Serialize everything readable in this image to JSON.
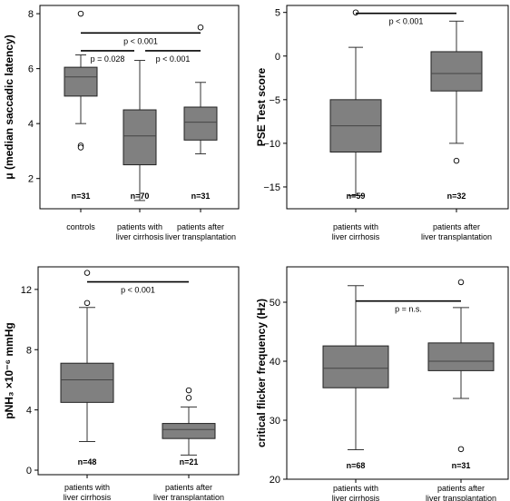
{
  "chart_data": [
    {
      "type": "box",
      "ylabel": "μ (median saccadic latency)",
      "ylim": [
        0.9,
        8.3
      ],
      "yticks": [
        2,
        4,
        6,
        8
      ],
      "categories": [
        "controls",
        "patients with\nliver cirrhosis",
        "patients after\nliver transplantation"
      ],
      "boxes": [
        {
          "min": 4.0,
          "q1": 5.0,
          "median": 5.7,
          "q3": 6.05,
          "max": 6.5,
          "outliers": [
            8.0,
            3.2,
            3.13
          ],
          "n": "n=31"
        },
        {
          "min": 1.2,
          "q1": 2.5,
          "median": 3.55,
          "q3": 4.5,
          "max": 6.3,
          "outliers": [],
          "n": "n=70"
        },
        {
          "min": 2.9,
          "q1": 3.4,
          "median": 4.05,
          "q3": 4.6,
          "max": 5.5,
          "outliers": [
            7.5
          ],
          "n": "n=31"
        }
      ],
      "annotations": [
        {
          "from": 0,
          "to": 2,
          "y": 7.3,
          "text": "p < 0.001"
        },
        {
          "from": 0,
          "to": 1,
          "y": 6.65,
          "text": "p = 0.028"
        },
        {
          "from": 1,
          "to": 2,
          "y": 6.65,
          "text": "p < 0.001"
        }
      ]
    },
    {
      "type": "box",
      "ylabel": "PSE Test score",
      "ylim": [
        -17.5,
        5.8
      ],
      "yticks": [
        5,
        0,
        -5,
        -10,
        -15
      ],
      "categories": [
        "patients with\nliver cirrhosis",
        "patients after\nliver transplantation"
      ],
      "boxes": [
        {
          "min": -16,
          "q1": -11,
          "median": -8,
          "q3": -5,
          "max": 1,
          "outliers": [
            5
          ],
          "n": "n=59"
        },
        {
          "min": -10,
          "q1": -4,
          "median": -2,
          "q3": 0.5,
          "max": 4,
          "outliers": [
            -12
          ],
          "n": "n=32"
        }
      ],
      "annotations": [
        {
          "from": 0,
          "to": 1,
          "y": 4.9,
          "text": "p < 0.001"
        }
      ]
    },
    {
      "type": "box",
      "ylabel": "pNH₃ ×10⁻⁶ mmHg",
      "ylim": [
        -0.3,
        13.5
      ],
      "yticks": [
        0,
        4,
        8,
        12
      ],
      "categories": [
        "patients with\nliver cirrhosis",
        "patients after\nliver transplantation"
      ],
      "boxes": [
        {
          "min": 1.9,
          "q1": 4.5,
          "median": 6.0,
          "q3": 7.1,
          "max": 10.8,
          "outliers": [
            13.1,
            11.1
          ],
          "n": "n=48"
        },
        {
          "min": 1.0,
          "q1": 2.1,
          "median": 2.7,
          "q3": 3.1,
          "max": 4.2,
          "outliers": [
            5.3,
            4.8
          ],
          "n": "n=21"
        }
      ],
      "annotations": [
        {
          "from": 0,
          "to": 1,
          "y": 12.5,
          "text": "p < 0.001"
        }
      ]
    },
    {
      "type": "box",
      "ylabel": "critical flicker frequency (Hz)",
      "ylim": [
        20,
        56
      ],
      "yticks": [
        20,
        30,
        40,
        50
      ],
      "categories": [
        "patients with\nliver cirrhosis",
        "patients after\nliver transplantation"
      ],
      "boxes": [
        {
          "min": 25,
          "q1": 35.5,
          "median": 38.8,
          "q3": 42.6,
          "max": 52.8,
          "outliers": [],
          "n": "n=68"
        },
        {
          "min": 33.7,
          "q1": 38.4,
          "median": 40,
          "q3": 43.1,
          "max": 49.1,
          "outliers": [
            53.4,
            25.1
          ],
          "n": "n=31"
        }
      ],
      "annotations": [
        {
          "from": 0,
          "to": 1,
          "y": 50.2,
          "text": "p = n.s."
        }
      ]
    }
  ]
}
